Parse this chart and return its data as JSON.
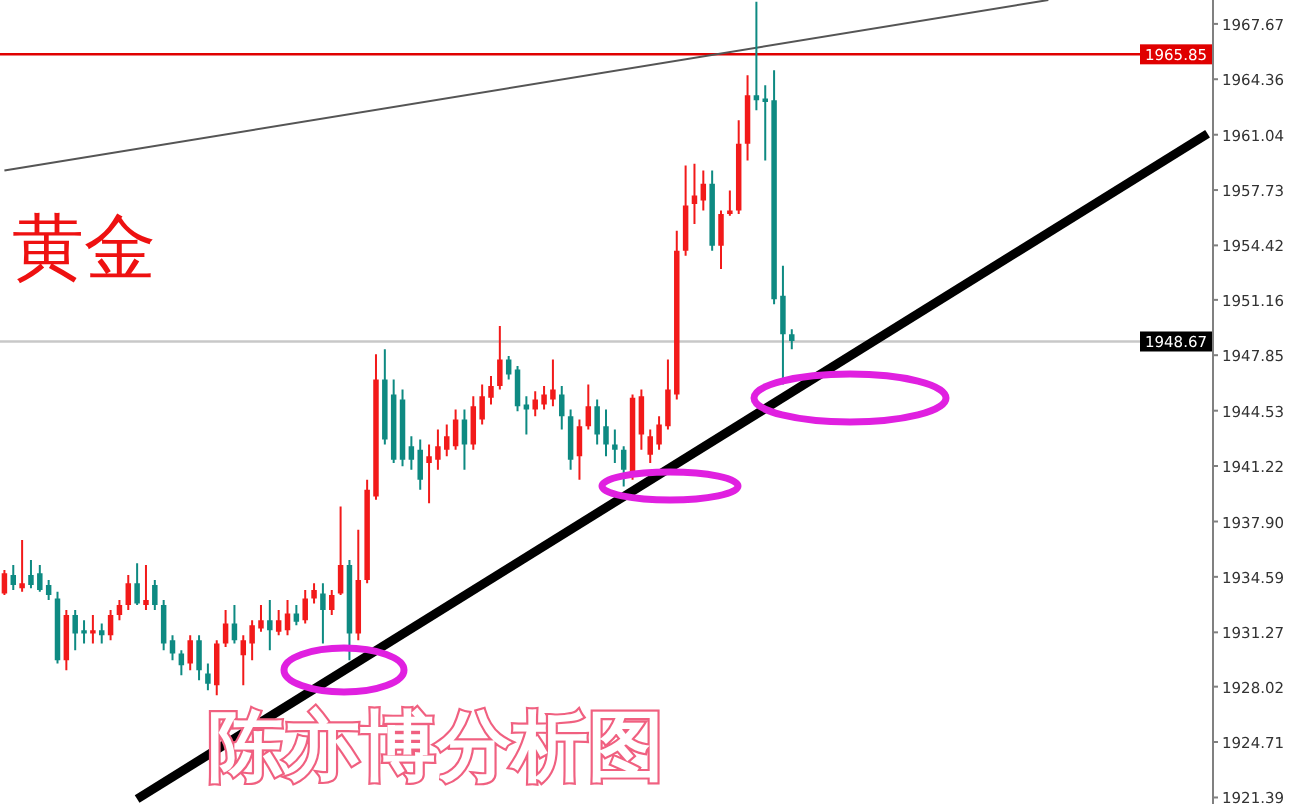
{
  "chart_data": {
    "type": "candlestick",
    "title": "黄金",
    "annotations": [
      "陈亦博分析图"
    ],
    "categories": [
      null,
      null,
      null,
      null,
      null,
      null,
      null,
      null,
      null,
      null,
      null,
      null,
      null,
      null,
      null,
      null,
      null,
      null,
      null,
      null,
      null,
      null,
      null,
      null,
      null,
      null,
      null,
      null,
      null,
      null,
      null,
      null,
      null,
      null,
      null,
      null,
      null,
      null,
      null,
      null,
      null,
      null,
      null,
      null,
      null,
      null,
      null,
      null,
      null,
      null,
      null,
      null,
      null,
      null,
      null,
      null,
      null,
      null,
      null,
      null,
      null,
      null,
      null,
      null,
      null,
      null,
      null,
      null,
      null,
      null,
      null,
      null,
      null,
      null,
      null,
      null,
      null,
      null,
      null,
      null,
      null,
      null,
      null,
      null,
      null,
      null,
      null,
      null,
      null,
      null,
      null,
      null,
      null,
      null,
      null,
      null,
      null,
      null,
      null,
      null,
      null,
      null,
      null,
      null,
      null,
      null,
      null,
      null,
      null,
      null,
      null,
      null,
      null,
      null,
      null,
      null,
      null,
      null,
      null,
      null,
      null,
      null,
      null,
      null,
      null,
      null,
      null,
      null,
      null,
      null,
      null,
      null,
      null,
      null,
      null,
      null,
      null
    ],
    "ohlc": [
      [
        1933.6,
        1935.0,
        1933.5,
        1934.8
      ],
      [
        1934.7,
        1935.3,
        1933.8,
        1934.1
      ],
      [
        1933.9,
        1936.8,
        1933.7,
        1934.2
      ],
      [
        1934.7,
        1935.6,
        1933.9,
        1934.1
      ],
      [
        1934.8,
        1935.3,
        1933.7,
        1933.8
      ],
      [
        1934.1,
        1934.4,
        1933.2,
        1933.5
      ],
      [
        1933.3,
        1933.7,
        1929.4,
        1929.6
      ],
      [
        1929.6,
        1932.6,
        1929.0,
        1932.3
      ],
      [
        1932.3,
        1932.6,
        1930.2,
        1931.2
      ],
      [
        1931.4,
        1932.0,
        1930.6,
        1931.2
      ],
      [
        1931.2,
        1932.3,
        1930.6,
        1931.4
      ],
      [
        1931.4,
        1931.8,
        1930.6,
        1931.1
      ],
      [
        1931.1,
        1932.6,
        1930.8,
        1932.3
      ],
      [
        1932.3,
        1933.2,
        1932.0,
        1932.9
      ],
      [
        1932.9,
        1934.7,
        1932.6,
        1934.2
      ],
      [
        1934.2,
        1935.4,
        1932.9,
        1933.0
      ],
      [
        1932.9,
        1935.3,
        1932.6,
        1933.2
      ],
      [
        1934.1,
        1934.4,
        1932.6,
        1932.9
      ],
      [
        1932.9,
        1933.2,
        1930.2,
        1930.6
      ],
      [
        1930.8,
        1931.1,
        1929.6,
        1930.0
      ],
      [
        1930.0,
        1930.2,
        1928.7,
        1929.3
      ],
      [
        1929.4,
        1931.1,
        1929.0,
        1930.8
      ],
      [
        1930.8,
        1931.1,
        1928.4,
        1929.0
      ],
      [
        1928.8,
        1929.4,
        1927.8,
        1928.2
      ],
      [
        1928.1,
        1930.8,
        1927.5,
        1930.6
      ],
      [
        1930.6,
        1932.6,
        1930.4,
        1931.8
      ],
      [
        1931.8,
        1932.9,
        1930.6,
        1930.8
      ],
      [
        1929.9,
        1931.1,
        1928.1,
        1930.8
      ],
      [
        1930.6,
        1932.0,
        1929.6,
        1931.7
      ],
      [
        1931.5,
        1932.9,
        1931.3,
        1932.0
      ],
      [
        1932.0,
        1933.2,
        1930.2,
        1931.4
      ],
      [
        1931.3,
        1932.6,
        1931.1,
        1932.0
      ],
      [
        1931.4,
        1933.2,
        1931.1,
        1932.4
      ],
      [
        1932.4,
        1932.9,
        1931.7,
        1931.9
      ],
      [
        1932.0,
        1933.8,
        1931.8,
        1933.3
      ],
      [
        1933.3,
        1934.2,
        1933.0,
        1933.8
      ],
      [
        1933.6,
        1934.2,
        1930.6,
        1932.6
      ],
      [
        1932.6,
        1933.8,
        1932.3,
        1933.5
      ],
      [
        1933.6,
        1938.8,
        1933.5,
        1935.3
      ],
      [
        1935.3,
        1935.6,
        1929.6,
        1931.2
      ],
      [
        1931.2,
        1937.4,
        1930.8,
        1934.4
      ],
      [
        1934.4,
        1940.4,
        1934.2,
        1939.8
      ],
      [
        1939.4,
        1947.9,
        1939.2,
        1946.4
      ],
      [
        1946.4,
        1948.2,
        1942.5,
        1942.8
      ],
      [
        1945.5,
        1946.4,
        1941.4,
        1941.6
      ],
      [
        1945.2,
        1945.8,
        1941.2,
        1941.6
      ],
      [
        1942.4,
        1943.0,
        1941.0,
        1941.6
      ],
      [
        1942.2,
        1942.8,
        1939.8,
        1940.4
      ],
      [
        1941.4,
        1942.5,
        1939.0,
        1941.8
      ],
      [
        1941.6,
        1943.4,
        1941.0,
        1942.4
      ],
      [
        1942.2,
        1943.7,
        1941.8,
        1943.0
      ],
      [
        1942.4,
        1944.6,
        1942.2,
        1944.0
      ],
      [
        1944.0,
        1944.6,
        1941.0,
        1942.5
      ],
      [
        1942.5,
        1945.4,
        1942.2,
        1944.8
      ],
      [
        1944.0,
        1946.1,
        1943.7,
        1945.4
      ],
      [
        1945.3,
        1946.6,
        1944.9,
        1946.0
      ],
      [
        1946.0,
        1949.6,
        1945.8,
        1947.6
      ],
      [
        1947.6,
        1947.8,
        1946.4,
        1946.7
      ],
      [
        1947.0,
        1947.2,
        1944.5,
        1944.8
      ],
      [
        1944.9,
        1945.4,
        1943.1,
        1944.6
      ],
      [
        1944.6,
        1945.7,
        1944.2,
        1945.2
      ],
      [
        1944.9,
        1946.0,
        1944.6,
        1945.5
      ],
      [
        1945.2,
        1947.6,
        1944.8,
        1945.8
      ],
      [
        1945.5,
        1946.0,
        1943.4,
        1944.2
      ],
      [
        1944.2,
        1944.6,
        1941.0,
        1941.6
      ],
      [
        1941.8,
        1944.0,
        1940.4,
        1943.6
      ],
      [
        1943.6,
        1946.1,
        1943.4,
        1944.8
      ],
      [
        1944.8,
        1945.2,
        1942.5,
        1943.1
      ],
      [
        1943.6,
        1944.6,
        1941.8,
        1942.5
      ],
      [
        1942.5,
        1943.4,
        1941.4,
        1942.2
      ],
      [
        1942.2,
        1942.4,
        1940.0,
        1941.0
      ],
      [
        1940.8,
        1945.5,
        1940.4,
        1945.3
      ],
      [
        1943.1,
        1945.8,
        1942.2,
        1945.4
      ],
      [
        1941.9,
        1943.4,
        1941.4,
        1943.0
      ],
      [
        1942.5,
        1944.2,
        1942.2,
        1943.7
      ],
      [
        1943.6,
        1947.6,
        1943.4,
        1945.8
      ],
      [
        1945.5,
        1955.3,
        1945.2,
        1954.1
      ],
      [
        1954.1,
        1959.2,
        1953.8,
        1956.8
      ],
      [
        1956.9,
        1959.3,
        1955.7,
        1957.4
      ],
      [
        1957.1,
        1958.9,
        1956.5,
        1958.1
      ],
      [
        1958.1,
        1958.9,
        1954.1,
        1954.4
      ],
      [
        1954.4,
        1956.5,
        1953.0,
        1956.3
      ],
      [
        1956.3,
        1957.7,
        1956.2,
        1956.5
      ],
      [
        1956.5,
        1961.9,
        1956.3,
        1960.5
      ],
      [
        1960.5,
        1964.6,
        1959.5,
        1963.4
      ],
      [
        1963.4,
        1969.0,
        1962.5,
        1963.1
      ],
      [
        1963.2,
        1964.0,
        1959.5,
        1963.0
      ],
      [
        1963.1,
        1964.9,
        1950.9,
        1951.2
      ],
      [
        1951.4,
        1953.2,
        1946.1,
        1949.1
      ],
      [
        1949.1,
        1949.4,
        1948.2,
        1948.7
      ],
      null,
      null,
      null,
      null,
      null,
      null,
      null,
      null,
      null,
      null,
      null,
      null,
      null,
      null,
      null,
      null,
      null,
      null,
      null,
      null,
      null,
      null,
      null,
      null,
      null,
      null,
      null,
      null,
      null,
      null,
      null,
      null,
      null,
      null,
      null,
      null,
      null,
      null,
      null,
      null,
      null,
      null,
      null,
      null,
      null,
      null,
      null
    ],
    "colors": [
      "#f21a1a",
      "#0e8a82",
      "#f21a1a",
      "#0e8a82",
      "#0e8a82",
      "#0e8a82",
      "#0e8a82",
      "#f21a1a",
      "#0e8a82",
      "#0e8a82",
      "#f21a1a",
      "#0e8a82",
      "#f21a1a",
      "#f21a1a",
      "#f21a1a",
      "#0e8a82",
      "#f21a1a",
      "#0e8a82",
      "#0e8a82",
      "#0e8a82",
      "#0e8a82",
      "#f21a1a",
      "#0e8a82",
      "#0e8a82",
      "#f21a1a",
      "#f21a1a",
      "#0e8a82",
      "#f21a1a",
      "#f21a1a",
      "#f21a1a",
      "#0e8a82",
      "#f21a1a",
      "#f21a1a",
      "#0e8a82",
      "#f21a1a",
      "#f21a1a",
      "#0e8a82",
      "#f21a1a",
      "#f21a1a",
      "#0e8a82",
      "#f21a1a",
      "#f21a1a",
      "#f21a1a",
      "#0e8a82",
      "#0e8a82",
      "#0e8a82",
      "#0e8a82",
      "#0e8a82",
      "#f21a1a",
      "#f21a1a",
      "#f21a1a",
      "#f21a1a",
      "#0e8a82",
      "#f21a1a",
      "#f21a1a",
      "#f21a1a",
      "#f21a1a",
      "#0e8a82",
      "#0e8a82",
      "#0e8a82",
      "#f21a1a",
      "#f21a1a",
      "#f21a1a",
      "#0e8a82",
      "#0e8a82",
      "#f21a1a",
      "#f21a1a",
      "#0e8a82",
      "#0e8a82",
      "#0e8a82",
      "#0e8a82",
      "#f21a1a",
      "#f21a1a",
      "#f21a1a",
      "#f21a1a",
      "#f21a1a",
      "#f21a1a",
      "#f21a1a",
      "#f21a1a",
      "#f21a1a",
      "#0e8a82",
      "#f21a1a",
      "#f21a1a",
      "#f21a1a",
      "#f21a1a",
      "#0e8a82",
      "#0e8a82",
      "#0e8a82",
      "#0e8a82",
      "#0e8a82",
      null,
      null,
      null,
      null,
      null,
      null,
      null,
      null,
      null,
      null,
      null,
      null,
      null,
      null,
      null,
      null,
      null,
      null,
      null,
      null,
      null,
      null,
      null,
      null,
      null,
      null,
      null,
      null,
      null,
      null,
      null,
      null,
      null,
      null,
      null,
      null,
      null,
      null,
      null,
      null,
      null,
      null,
      null,
      null,
      null,
      null,
      null
    ],
    "series": [
      {
        "type": "line",
        "color": "#555555",
        "values": [
          1958.9,
          null,
          null,
          null,
          null,
          null,
          null,
          null,
          null,
          null,
          null,
          null,
          null,
          null,
          null,
          null,
          null,
          null,
          null,
          null,
          null,
          null,
          null,
          null,
          null,
          null,
          null,
          null,
          null,
          null,
          null,
          null,
          null,
          null,
          null,
          null,
          null,
          null,
          null,
          null,
          null,
          null,
          null,
          null,
          null,
          null,
          null,
          null,
          null,
          null,
          null,
          null,
          null,
          null,
          null,
          null,
          null,
          null,
          null,
          null,
          null,
          null,
          null,
          null,
          null,
          null,
          null,
          null,
          null,
          null,
          null,
          null,
          null,
          null,
          null,
          null,
          null,
          null,
          null,
          null,
          null,
          null,
          null,
          null,
          null,
          null,
          null,
          null,
          null,
          null,
          null,
          null,
          null,
          null,
          null,
          null,
          null,
          null,
          null,
          null,
          null,
          null,
          null,
          null,
          null,
          null,
          null,
          null,
          null,
          null,
          null,
          null,
          null,
          null,
          null,
          null,
          null,
          null,
          1969.1,
          null,
          null,
          null,
          null,
          null,
          null,
          null,
          null,
          null,
          null,
          null,
          null,
          null,
          null,
          null,
          null,
          null,
          null
        ]
      },
      {
        "type": "line",
        "color": "#000000",
        "values": [
          null,
          null,
          null,
          null,
          null,
          null,
          null,
          null,
          null,
          null,
          null,
          null,
          null,
          null,
          null,
          1921.3,
          null,
          null,
          null,
          null,
          null,
          null,
          null,
          null,
          null,
          null,
          null,
          null,
          null,
          null,
          null,
          null,
          null,
          null,
          null,
          null,
          null,
          null,
          null,
          null,
          null,
          null,
          null,
          null,
          null,
          null,
          null,
          null,
          null,
          null,
          null,
          null,
          null,
          null,
          null,
          null,
          null,
          null,
          null,
          null,
          null,
          null,
          null,
          null,
          null,
          null,
          null,
          null,
          null,
          null,
          null,
          null,
          null,
          null,
          null,
          null,
          null,
          null,
          null,
          null,
          null,
          null,
          null,
          null,
          null,
          null,
          null,
          null,
          null,
          null,
          null,
          null,
          null,
          null,
          null,
          null,
          null,
          null,
          null,
          null,
          null,
          null,
          null,
          null,
          null,
          null,
          null,
          null,
          null,
          null,
          null,
          null,
          null,
          null,
          null,
          null,
          null,
          null,
          null,
          null,
          null,
          null,
          null,
          null,
          null,
          null,
          null,
          null,
          null,
          null,
          null,
          null,
          null,
          null,
          null,
          null,
          1961.1
        ]
      }
    ],
    "ylim": [
      1921.0,
      1969.1
    ],
    "yticks": [
      1967.67,
      1964.36,
      1961.04,
      1957.73,
      1954.42,
      1951.16,
      1947.85,
      1944.53,
      1941.22,
      {
        "value": 1937.9,
        "label": "1937.90"
      },
      1934.59,
      1931.27,
      1928.02,
      1924.71,
      1921.39
    ],
    "ref_lines": [
      {
        "axis": "y",
        "value": 1965.85,
        "label": "1965.85",
        "color": "#e00000"
      },
      {
        "axis": "y",
        "value": 1948.67,
        "label": "1948.67",
        "color": "#c8c8c8"
      }
    ]
  }
}
